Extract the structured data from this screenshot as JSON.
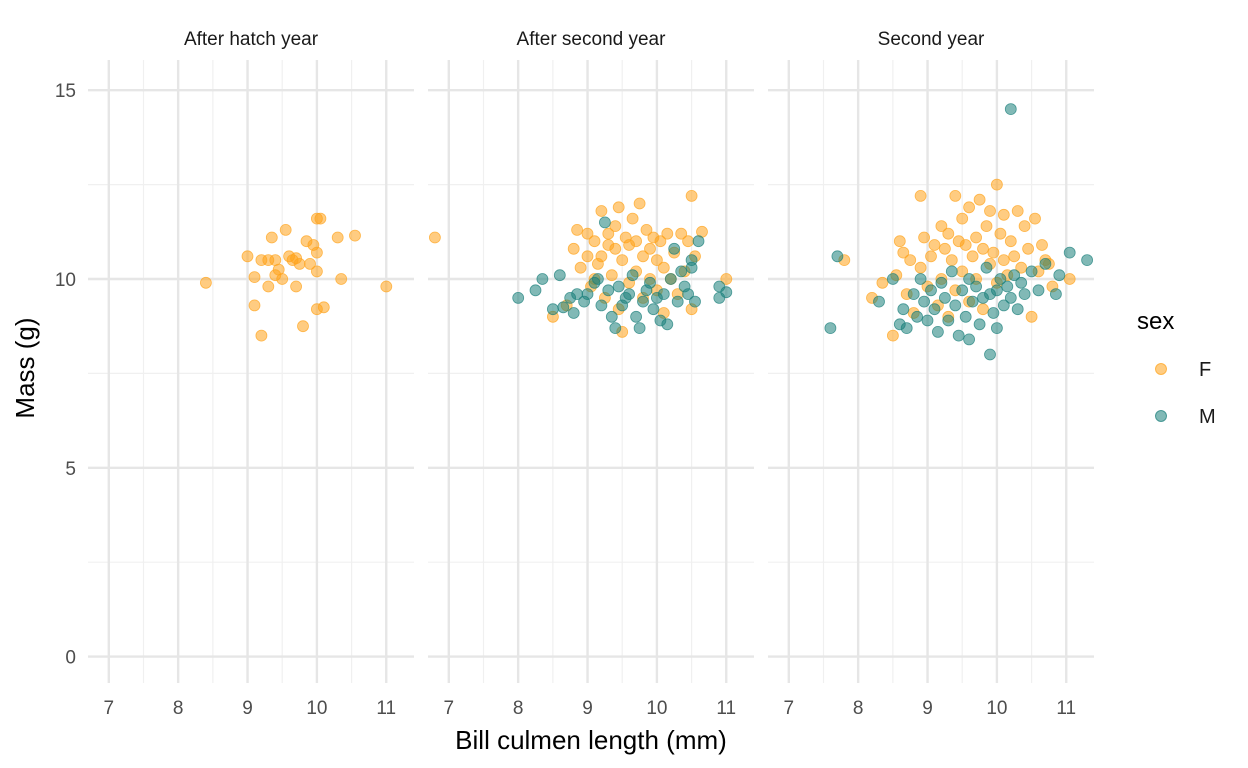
{
  "chart_data": {
    "type": "scatter",
    "xlabel": "Bill culmen length (mm)",
    "ylabel": "Mass (g)",
    "xlim": [
      6.7,
      11.4
    ],
    "ylim": [
      -0.7,
      15.8
    ],
    "x_ticks": [
      "7",
      "8",
      "9",
      "10",
      "11"
    ],
    "y_ticks": [
      "0",
      "5",
      "10",
      "15"
    ],
    "grid": true,
    "legend": {
      "title": "sex",
      "placement": "right",
      "entries": [
        {
          "name": "F",
          "color": "#FFA21A"
        },
        {
          "name": "M",
          "color": "#1A7F7A"
        }
      ]
    },
    "panels": [
      {
        "title": "After hatch year",
        "series": [
          {
            "name": "F",
            "points": [
              [
                8.4,
                9.9
              ],
              [
                9.0,
                10.6
              ],
              [
                9.1,
                10.05
              ],
              [
                9.1,
                9.3
              ],
              [
                9.2,
                10.5
              ],
              [
                9.2,
                8.5
              ],
              [
                9.3,
                10.5
              ],
              [
                9.3,
                9.8
              ],
              [
                9.35,
                11.1
              ],
              [
                9.4,
                10.1
              ],
              [
                9.4,
                10.5
              ],
              [
                9.45,
                10.25
              ],
              [
                9.5,
                10.0
              ],
              [
                9.55,
                11.3
              ],
              [
                9.6,
                10.6
              ],
              [
                9.65,
                10.5
              ],
              [
                9.7,
                9.8
              ],
              [
                9.7,
                10.55
              ],
              [
                9.75,
                10.4
              ],
              [
                9.8,
                8.75
              ],
              [
                9.85,
                11.0
              ],
              [
                9.9,
                10.4
              ],
              [
                9.95,
                10.9
              ],
              [
                10.0,
                11.6
              ],
              [
                10.0,
                10.2
              ],
              [
                10.0,
                10.7
              ],
              [
                10.0,
                9.2
              ],
              [
                10.05,
                11.6
              ],
              [
                10.1,
                9.25
              ],
              [
                10.3,
                11.1
              ],
              [
                10.35,
                10.0
              ],
              [
                10.55,
                11.15
              ],
              [
                11.0,
                9.8
              ]
            ]
          }
        ]
      },
      {
        "title": "After second year",
        "series": [
          {
            "name": "F",
            "points": [
              [
                6.8,
                11.1
              ],
              [
                8.5,
                9.0
              ],
              [
                8.7,
                9.3
              ],
              [
                8.8,
                10.8
              ],
              [
                8.85,
                11.3
              ],
              [
                8.9,
                10.3
              ],
              [
                9.0,
                11.2
              ],
              [
                9.0,
                10.6
              ],
              [
                9.05,
                9.8
              ],
              [
                9.1,
                10.0
              ],
              [
                9.1,
                11.0
              ],
              [
                9.15,
                10.4
              ],
              [
                9.2,
                11.8
              ],
              [
                9.2,
                10.6
              ],
              [
                9.25,
                9.5
              ],
              [
                9.3,
                10.9
              ],
              [
                9.3,
                11.2
              ],
              [
                9.35,
                10.1
              ],
              [
                9.4,
                10.8
              ],
              [
                9.4,
                11.4
              ],
              [
                9.45,
                11.9
              ],
              [
                9.45,
                9.2
              ],
              [
                9.5,
                10.5
              ],
              [
                9.5,
                8.6
              ],
              [
                9.55,
                11.1
              ],
              [
                9.6,
                10.9
              ],
              [
                9.6,
                9.9
              ],
              [
                9.65,
                11.6
              ],
              [
                9.7,
                10.2
              ],
              [
                9.7,
                11.0
              ],
              [
                9.75,
                12.0
              ],
              [
                9.8,
                10.6
              ],
              [
                9.8,
                9.5
              ],
              [
                9.85,
                11.3
              ],
              [
                9.9,
                10.0
              ],
              [
                9.9,
                10.8
              ],
              [
                9.95,
                11.1
              ],
              [
                10.0,
                9.7
              ],
              [
                10.0,
                10.5
              ],
              [
                10.05,
                11.0
              ],
              [
                10.1,
                10.3
              ],
              [
                10.1,
                9.1
              ],
              [
                10.15,
                11.2
              ],
              [
                10.2,
                10.0
              ],
              [
                10.25,
                10.7
              ],
              [
                10.3,
                9.6
              ],
              [
                10.35,
                11.2
              ],
              [
                10.4,
                10.2
              ],
              [
                10.45,
                11.0
              ],
              [
                10.5,
                12.2
              ],
              [
                10.5,
                9.2
              ],
              [
                10.55,
                10.6
              ],
              [
                10.65,
                11.25
              ],
              [
                11.0,
                10.0
              ]
            ]
          },
          {
            "name": "M",
            "points": [
              [
                8.0,
                9.5
              ],
              [
                8.25,
                9.7
              ],
              [
                8.35,
                10.0
              ],
              [
                8.5,
                9.2
              ],
              [
                8.6,
                10.1
              ],
              [
                8.65,
                9.25
              ],
              [
                8.75,
                9.5
              ],
              [
                8.8,
                9.1
              ],
              [
                8.85,
                9.6
              ],
              [
                8.95,
                9.4
              ],
              [
                9.0,
                9.6
              ],
              [
                9.1,
                9.9
              ],
              [
                9.15,
                10.0
              ],
              [
                9.2,
                9.3
              ],
              [
                9.25,
                11.5
              ],
              [
                9.3,
                9.7
              ],
              [
                9.35,
                9.0
              ],
              [
                9.4,
                8.7
              ],
              [
                9.45,
                9.8
              ],
              [
                9.5,
                9.3
              ],
              [
                9.55,
                9.5
              ],
              [
                9.6,
                9.6
              ],
              [
                9.65,
                10.1
              ],
              [
                9.7,
                9.0
              ],
              [
                9.75,
                8.7
              ],
              [
                9.8,
                9.4
              ],
              [
                9.85,
                9.7
              ],
              [
                9.9,
                9.9
              ],
              [
                9.95,
                9.2
              ],
              [
                10.0,
                9.5
              ],
              [
                10.05,
                8.9
              ],
              [
                10.1,
                9.6
              ],
              [
                10.15,
                8.8
              ],
              [
                10.2,
                10.0
              ],
              [
                10.25,
                10.8
              ],
              [
                10.3,
                9.4
              ],
              [
                10.35,
                10.2
              ],
              [
                10.4,
                9.8
              ],
              [
                10.45,
                9.6
              ],
              [
                10.5,
                10.5
              ],
              [
                10.5,
                10.3
              ],
              [
                10.55,
                9.4
              ],
              [
                10.6,
                11.0
              ],
              [
                10.9,
                9.8
              ],
              [
                10.9,
                9.5
              ],
              [
                11.0,
                9.65
              ]
            ]
          }
        ]
      },
      {
        "title": "Second year",
        "series": [
          {
            "name": "F",
            "points": [
              [
                7.8,
                10.5
              ],
              [
                8.2,
                9.5
              ],
              [
                8.35,
                9.9
              ],
              [
                8.5,
                8.5
              ],
              [
                8.55,
                10.1
              ],
              [
                8.6,
                11.0
              ],
              [
                8.65,
                10.7
              ],
              [
                8.7,
                9.6
              ],
              [
                8.75,
                10.5
              ],
              [
                8.8,
                9.1
              ],
              [
                8.9,
                12.2
              ],
              [
                8.9,
                10.3
              ],
              [
                8.95,
                11.1
              ],
              [
                9.0,
                9.8
              ],
              [
                9.05,
                10.6
              ],
              [
                9.1,
                10.9
              ],
              [
                9.15,
                9.3
              ],
              [
                9.2,
                11.4
              ],
              [
                9.2,
                10.0
              ],
              [
                9.25,
                10.8
              ],
              [
                9.3,
                9.0
              ],
              [
                9.3,
                11.2
              ],
              [
                9.35,
                10.5
              ],
              [
                9.4,
                12.2
              ],
              [
                9.4,
                9.7
              ],
              [
                9.45,
                11.0
              ],
              [
                9.5,
                10.2
              ],
              [
                9.5,
                11.6
              ],
              [
                9.55,
                10.9
              ],
              [
                9.6,
                9.4
              ],
              [
                9.6,
                11.9
              ],
              [
                9.65,
                10.6
              ],
              [
                9.7,
                11.1
              ],
              [
                9.7,
                10.0
              ],
              [
                9.75,
                12.1
              ],
              [
                9.8,
                10.8
              ],
              [
                9.8,
                9.2
              ],
              [
                9.85,
                11.4
              ],
              [
                9.9,
                10.4
              ],
              [
                9.9,
                11.8
              ],
              [
                9.95,
                10.7
              ],
              [
                10.0,
                12.5
              ],
              [
                10.0,
                9.9
              ],
              [
                10.05,
                11.2
              ],
              [
                10.1,
                10.5
              ],
              [
                10.1,
                11.7
              ],
              [
                10.15,
                10.1
              ],
              [
                10.2,
                11.0
              ],
              [
                10.25,
                10.6
              ],
              [
                10.3,
                11.8
              ],
              [
                10.35,
                10.3
              ],
              [
                10.4,
                11.4
              ],
              [
                10.45,
                10.8
              ],
              [
                10.5,
                9.0
              ],
              [
                10.55,
                11.6
              ],
              [
                10.6,
                10.2
              ],
              [
                10.65,
                10.9
              ],
              [
                10.7,
                10.5
              ],
              [
                10.75,
                10.4
              ],
              [
                10.8,
                9.8
              ],
              [
                11.05,
                10.0
              ]
            ]
          },
          {
            "name": "M",
            "points": [
              [
                7.6,
                8.7
              ],
              [
                7.7,
                10.6
              ],
              [
                8.3,
                9.4
              ],
              [
                8.5,
                10.0
              ],
              [
                8.6,
                8.8
              ],
              [
                8.65,
                9.2
              ],
              [
                8.7,
                8.7
              ],
              [
                8.8,
                9.6
              ],
              [
                8.85,
                9.0
              ],
              [
                8.9,
                10.0
              ],
              [
                8.95,
                9.4
              ],
              [
                9.0,
                8.9
              ],
              [
                9.05,
                9.7
              ],
              [
                9.1,
                9.2
              ],
              [
                9.15,
                8.6
              ],
              [
                9.2,
                9.9
              ],
              [
                9.25,
                9.5
              ],
              [
                9.3,
                8.9
              ],
              [
                9.35,
                10.2
              ],
              [
                9.4,
                9.3
              ],
              [
                9.45,
                8.5
              ],
              [
                9.5,
                9.7
              ],
              [
                9.55,
                9.0
              ],
              [
                9.6,
                10.0
              ],
              [
                9.6,
                8.4
              ],
              [
                9.65,
                9.4
              ],
              [
                9.7,
                9.8
              ],
              [
                9.75,
                8.8
              ],
              [
                9.8,
                9.5
              ],
              [
                9.85,
                10.3
              ],
              [
                9.9,
                8.0
              ],
              [
                9.9,
                9.6
              ],
              [
                9.95,
                9.1
              ],
              [
                10.0,
                9.7
              ],
              [
                10.0,
                8.7
              ],
              [
                10.05,
                10.0
              ],
              [
                10.1,
                9.3
              ],
              [
                10.15,
                9.8
              ],
              [
                10.2,
                14.5
              ],
              [
                10.2,
                9.5
              ],
              [
                10.25,
                10.1
              ],
              [
                10.3,
                9.2
              ],
              [
                10.35,
                9.9
              ],
              [
                10.4,
                9.6
              ],
              [
                10.5,
                10.2
              ],
              [
                10.6,
                9.7
              ],
              [
                10.7,
                10.4
              ],
              [
                10.85,
                9.6
              ],
              [
                10.9,
                10.1
              ],
              [
                11.05,
                10.7
              ],
              [
                11.3,
                10.5
              ]
            ]
          }
        ]
      }
    ]
  }
}
